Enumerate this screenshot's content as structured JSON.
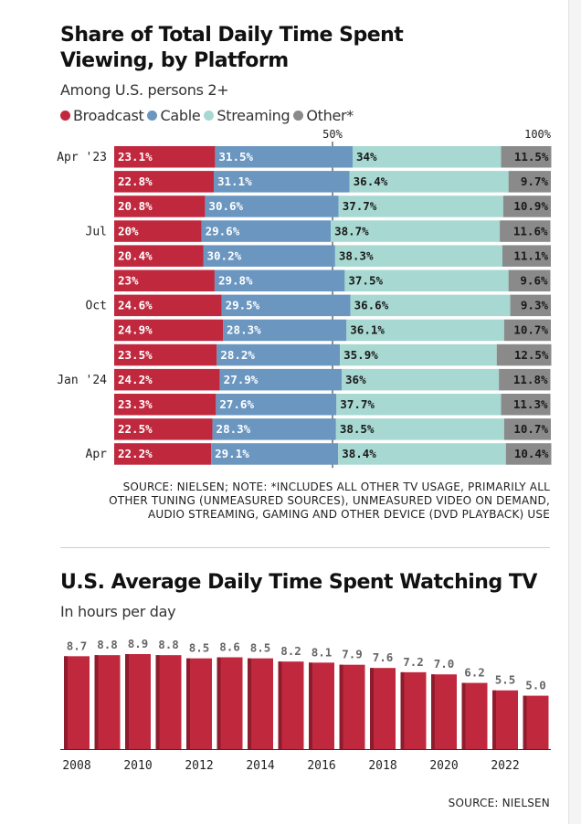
{
  "chart1": {
    "title_line1": "Share of Total Daily Time Spent",
    "title_line2": "Viewing, by Platform",
    "subtitle": "Among U.S. persons 2+",
    "source_line1": "SOURCE: NIELSEN; NOTE: *INCLUDES ALL OTHER TV USAGE, PRIMARILY ALL",
    "source_line2": "OTHER TUNING (UNMEASURED SOURCES), UNMEASURED VIDEO ON DEMAND,",
    "source_line3": "AUDIO STREAMING, GAMING AND OTHER DEVICE (DVD PLAYBACK) USE"
  },
  "chart2": {
    "title": "U.S. Average Daily Time Spent Watching TV",
    "subtitle": "In hours per day",
    "source": "SOURCE: NIELSEN"
  },
  "chart_data": [
    {
      "type": "bar",
      "orientation": "horizontal",
      "stacked": true,
      "normalized": true,
      "title": "Share of Total Daily Time Spent Viewing, by Platform",
      "subtitle": "Among U.S. persons 2+",
      "xlim": [
        0,
        100
      ],
      "xtick_labels": [
        {
          "value": 50,
          "label": "50%"
        },
        {
          "value": 100,
          "label": "100%"
        }
      ],
      "legend_position": "top-left",
      "row_labels": [
        "Apr '23",
        "",
        "",
        "Jul",
        "",
        "",
        "Oct",
        "",
        "",
        "Jan '24",
        "",
        "",
        "Apr"
      ],
      "series": [
        {
          "name": "Broadcast",
          "color": "#c0283e",
          "labels": [
            "23.1%",
            "22.8%",
            "20.8%",
            "20%",
            "20.4%",
            "23%",
            "24.6%",
            "24.9%",
            "23.5%",
            "24.2%",
            "23.3%",
            "22.5%",
            "22.2%"
          ],
          "values": [
            23.1,
            22.8,
            20.8,
            20,
            20.4,
            23,
            24.6,
            24.9,
            23.5,
            24.2,
            23.3,
            22.5,
            22.2
          ]
        },
        {
          "name": "Cable",
          "color": "#6a96c0",
          "labels": [
            "31.5%",
            "31.1%",
            "30.6%",
            "29.6%",
            "30.2%",
            "29.8%",
            "29.5%",
            "28.3%",
            "28.2%",
            "27.9%",
            "27.6%",
            "28.3%",
            "29.1%"
          ],
          "values": [
            31.5,
            31.1,
            30.6,
            29.6,
            30.2,
            29.8,
            29.5,
            28.3,
            28.2,
            27.9,
            27.6,
            28.3,
            29.1
          ]
        },
        {
          "name": "Streaming",
          "color": "#a8d8d2",
          "labels": [
            "34%",
            "36.4%",
            "37.7%",
            "38.7%",
            "38.3%",
            "37.5%",
            "36.6%",
            "36.1%",
            "35.9%",
            "36%",
            "37.7%",
            "38.5%",
            "38.4%"
          ],
          "values": [
            34,
            36.4,
            37.7,
            38.7,
            38.3,
            37.5,
            36.6,
            36.1,
            35.9,
            36,
            37.7,
            38.5,
            38.4
          ]
        },
        {
          "name": "Other*",
          "color": "#8a8a8a",
          "labels": [
            "11.5%",
            "9.7%",
            "10.9%",
            "11.6%",
            "11.1%",
            "9.6%",
            "9.3%",
            "10.7%",
            "12.5%",
            "11.8%",
            "11.3%",
            "10.7%",
            "10.4%"
          ],
          "values": [
            11.5,
            9.7,
            10.9,
            11.6,
            11.1,
            9.6,
            9.3,
            10.7,
            12.5,
            11.8,
            11.3,
            10.7,
            10.4
          ]
        }
      ]
    },
    {
      "type": "bar",
      "title": "U.S. Average Daily Time Spent Watching TV",
      "subtitle": "In hours per day",
      "color": "#c0283e",
      "x": [
        2008,
        2009,
        2010,
        2011,
        2012,
        2013,
        2014,
        2015,
        2016,
        2017,
        2018,
        2019,
        2020,
        2021,
        2022,
        2023
      ],
      "values": [
        8.7,
        8.8,
        8.9,
        8.8,
        8.5,
        8.6,
        8.5,
        8.2,
        8.1,
        7.9,
        7.6,
        7.2,
        7.0,
        6.2,
        5.5,
        5.0
      ],
      "value_labels": [
        "8.7",
        "8.8",
        "8.9",
        "8.8",
        "8.5",
        "8.6",
        "8.5",
        "8.2",
        "8.1",
        "7.9",
        "7.6",
        "7.2",
        "7.0",
        "6.2",
        "5.5",
        "5.0"
      ],
      "xtick_labels": [
        "2008",
        "2010",
        "2012",
        "2014",
        "2016",
        "2018",
        "2020",
        "2022"
      ],
      "ylim": [
        0,
        8.9
      ]
    }
  ]
}
